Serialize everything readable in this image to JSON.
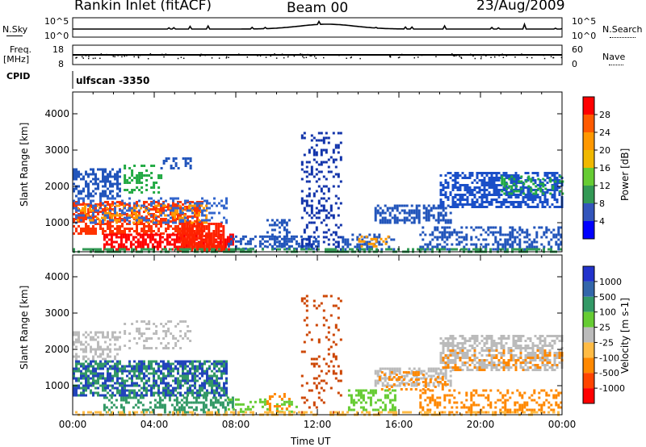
{
  "header": {
    "station": "Rankin Inlet (fitACF)",
    "beam": "Beam 00",
    "date": "23/Aug/2009"
  },
  "noise_strip": {
    "left_label": "N.Sky",
    "right_label": "N.Search",
    "left_ticks": [
      "10^5",
      "10^0"
    ],
    "right_ticks": [
      "10^5",
      "10^0"
    ]
  },
  "freq_strip": {
    "left_label_top": "Freq.",
    "left_label_bottom": "[MHz]",
    "left_ticks": [
      "18",
      "8"
    ],
    "right_label": "Nave",
    "right_ticks": [
      "60",
      "0"
    ]
  },
  "cpid": {
    "label": "CPID",
    "value": "ulfscan -3350"
  },
  "chart_data": [
    {
      "type": "heatmap",
      "name": "power-panel",
      "ylabel": "Slant Range [km]",
      "xlabel": "",
      "xlim": [
        0,
        24
      ],
      "ylim": [
        200,
        4600
      ],
      "yticks": [
        1000,
        2000,
        3000,
        4000
      ],
      "grid": false,
      "colorbar": {
        "label": "Power [dB]",
        "ticks": [
          "28",
          "24",
          "20",
          "16",
          "12",
          "8",
          "4"
        ],
        "colors": [
          "#ff0000",
          "#ff5a00",
          "#ff9800",
          "#f0b800",
          "#66cc33",
          "#339955",
          "#3355bb",
          "#0000ff"
        ]
      },
      "bands": [
        {
          "x0": 0.0,
          "x1": 2.3,
          "y0": 1700,
          "y1": 2500,
          "color": "#2255bb",
          "density": 0.55
        },
        {
          "x0": 2.5,
          "x1": 4.3,
          "y0": 1800,
          "y1": 2600,
          "color": "#22aa44",
          "density": 0.35
        },
        {
          "x0": 4.3,
          "x1": 5.8,
          "y0": 2500,
          "y1": 2800,
          "color": "#2255bb",
          "density": 0.4
        },
        {
          "x0": 0.0,
          "x1": 6.4,
          "y0": 700,
          "y1": 1600,
          "color": "#ff3300",
          "density": 0.6
        },
        {
          "x0": 0.2,
          "x1": 6.6,
          "y0": 1000,
          "y1": 1500,
          "color": "#ff9900",
          "density": 0.35
        },
        {
          "x0": 0.0,
          "x1": 7.6,
          "y0": 1000,
          "y1": 1700,
          "color": "#3366cc",
          "density": 0.3
        },
        {
          "x0": 1.5,
          "x1": 7.8,
          "y0": 250,
          "y1": 700,
          "color": "#ff0000",
          "density": 0.7
        },
        {
          "x0": 5.2,
          "x1": 7.4,
          "y0": 250,
          "y1": 1000,
          "color": "#ff2200",
          "density": 0.85
        },
        {
          "x0": 7.6,
          "x1": 12.0,
          "y0": 250,
          "y1": 650,
          "color": "#2255bb",
          "density": 0.5
        },
        {
          "x0": 9.5,
          "x1": 10.6,
          "y0": 300,
          "y1": 1100,
          "color": "#2255bb",
          "density": 0.3
        },
        {
          "x0": 11.2,
          "x1": 13.2,
          "y0": 250,
          "y1": 3500,
          "color": "#1133aa",
          "density": 0.25
        },
        {
          "x0": 13.2,
          "x1": 15.8,
          "y0": 250,
          "y1": 700,
          "color": "#2255bb",
          "density": 0.4
        },
        {
          "x0": 14.0,
          "x1": 15.5,
          "y0": 350,
          "y1": 650,
          "color": "#ff9900",
          "density": 0.35
        },
        {
          "x0": 14.8,
          "x1": 18.5,
          "y0": 1000,
          "y1": 1500,
          "color": "#2255bb",
          "density": 0.55
        },
        {
          "x0": 18.0,
          "x1": 24.0,
          "y0": 1400,
          "y1": 2400,
          "color": "#1a4fc8",
          "density": 0.6
        },
        {
          "x0": 21.0,
          "x1": 24.0,
          "y0": 1800,
          "y1": 2300,
          "color": "#22aa44",
          "density": 0.25
        },
        {
          "x0": 17.0,
          "x1": 24.0,
          "y0": 250,
          "y1": 900,
          "color": "#2255bb",
          "density": 0.4
        },
        {
          "x0": 0.0,
          "x1": 24.0,
          "y0": 200,
          "y1": 300,
          "color": "#339955",
          "density": 0.5
        }
      ]
    },
    {
      "type": "heatmap",
      "name": "velocity-panel",
      "ylabel": "Slant Range [km]",
      "xlabel": "Time UT",
      "xlim": [
        0,
        24
      ],
      "ylim": [
        200,
        4600
      ],
      "yticks": [
        1000,
        2000,
        3000,
        4000
      ],
      "xticks": [
        "00:00",
        "04:00",
        "08:00",
        "12:00",
        "16:00",
        "20:00",
        "00:00"
      ],
      "grid": false,
      "colorbar": {
        "label": "Velocity [m s-1]",
        "ticks": [
          "1000",
          "500",
          "100",
          "25",
          "-25",
          "-100",
          "-500",
          "-1000"
        ],
        "colors": [
          "#2233cc",
          "#3366aa",
          "#339966",
          "#66cc33",
          "#bbbbbb",
          "#ffbb44",
          "#ff8800",
          "#ff4400",
          "#ff0000"
        ]
      },
      "bands": [
        {
          "x0": 0.0,
          "x1": 2.3,
          "y0": 1700,
          "y1": 2500,
          "color": "#bbbbbb",
          "density": 0.45
        },
        {
          "x0": 2.5,
          "x1": 5.8,
          "y0": 2000,
          "y1": 2800,
          "color": "#bbbbbb",
          "density": 0.3
        },
        {
          "x0": 0.0,
          "x1": 7.6,
          "y0": 700,
          "y1": 1700,
          "color": "#2244bb",
          "density": 0.5
        },
        {
          "x0": 0.0,
          "x1": 7.6,
          "y0": 700,
          "y1": 1700,
          "color": "#339966",
          "density": 0.35
        },
        {
          "x0": 1.5,
          "x1": 7.8,
          "y0": 250,
          "y1": 700,
          "color": "#339966",
          "density": 0.45
        },
        {
          "x0": 7.6,
          "x1": 11.0,
          "y0": 250,
          "y1": 650,
          "color": "#66cc33",
          "density": 0.25
        },
        {
          "x0": 9.5,
          "x1": 10.6,
          "y0": 300,
          "y1": 800,
          "color": "#ff8800",
          "density": 0.35
        },
        {
          "x0": 11.2,
          "x1": 13.2,
          "y0": 250,
          "y1": 3500,
          "color": "#cc4400",
          "density": 0.15
        },
        {
          "x0": 13.5,
          "x1": 15.8,
          "y0": 350,
          "y1": 900,
          "color": "#66cc33",
          "density": 0.45
        },
        {
          "x0": 14.8,
          "x1": 18.5,
          "y0": 1000,
          "y1": 1500,
          "color": "#bbbbbb",
          "density": 0.55
        },
        {
          "x0": 15.0,
          "x1": 18.5,
          "y0": 900,
          "y1": 1400,
          "color": "#ff8800",
          "density": 0.3
        },
        {
          "x0": 18.0,
          "x1": 24.0,
          "y0": 1400,
          "y1": 2400,
          "color": "#bbbbbb",
          "density": 0.55
        },
        {
          "x0": 18.0,
          "x1": 24.0,
          "y0": 1400,
          "y1": 2000,
          "color": "#ff8800",
          "density": 0.25
        },
        {
          "x0": 17.0,
          "x1": 24.0,
          "y0": 250,
          "y1": 900,
          "color": "#ff8800",
          "density": 0.35
        },
        {
          "x0": 0.0,
          "x1": 24.0,
          "y0": 200,
          "y1": 300,
          "color": "#ffbb44",
          "density": 0.4
        }
      ]
    }
  ]
}
